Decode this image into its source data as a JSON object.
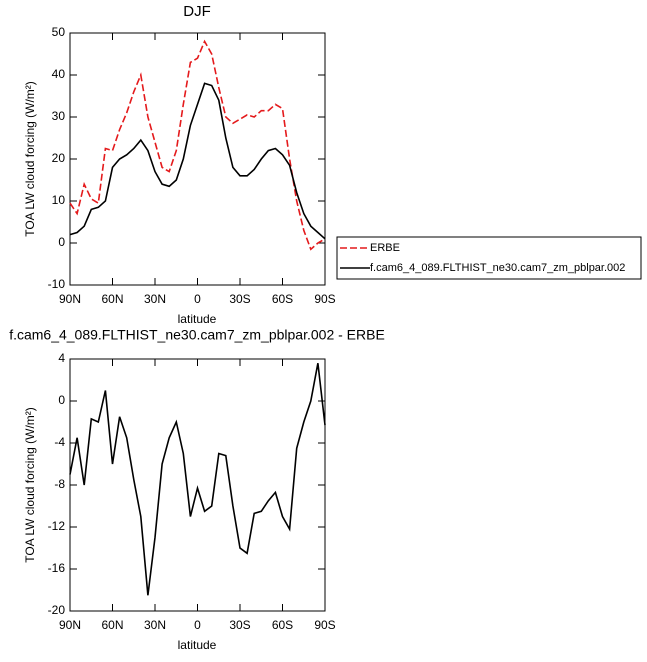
{
  "chart_data": [
    {
      "type": "line",
      "title": "DJF",
      "xlabel": "latitude",
      "ylabel": "TOA LW cloud forcing (W/m²)",
      "x": [
        90,
        85,
        80,
        75,
        70,
        65,
        60,
        55,
        50,
        45,
        40,
        35,
        30,
        25,
        20,
        15,
        10,
        5,
        0,
        -5,
        -10,
        -15,
        -20,
        -25,
        -30,
        -35,
        -40,
        -45,
        -50,
        -55,
        -60,
        -65,
        -70,
        -75,
        -80,
        -85,
        -90
      ],
      "xlim": [
        90,
        -90
      ],
      "xticks": [
        {
          "value": 90,
          "label": "90N"
        },
        {
          "value": 60,
          "label": "60N"
        },
        {
          "value": 30,
          "label": "30N"
        },
        0,
        {
          "value": -30,
          "label": "30S"
        },
        {
          "value": -60,
          "label": "60S"
        },
        {
          "value": -90,
          "label": "90S"
        }
      ],
      "ylim": [
        -10,
        50
      ],
      "yticks": [
        -10,
        0,
        10,
        20,
        30,
        40,
        50
      ],
      "series": [
        {
          "name": "ERBE",
          "color": "#e41a1c",
          "dashed": true,
          "values": [
            9.5,
            7,
            14,
            10.5,
            9.5,
            22.5,
            22,
            27,
            31,
            36,
            40,
            30,
            24,
            18,
            17,
            22,
            33,
            43,
            44,
            48,
            45,
            37,
            30,
            28.5,
            29.5,
            30.5,
            30,
            31.5,
            31.5,
            33,
            32,
            20,
            10,
            3,
            -1.5,
            0,
            1
          ]
        },
        {
          "name": "f.cam6_4_089.FLTHIST_ne30.cam7_zm_pblpar.002",
          "color": "#000000",
          "dashed": false,
          "values": [
            2,
            2.5,
            4,
            8,
            8.5,
            10,
            18,
            20,
            21,
            22.5,
            24.5,
            22,
            17,
            14,
            13.5,
            15,
            20,
            28,
            33,
            38,
            37.5,
            34,
            25,
            18,
            16,
            16,
            17.5,
            20,
            22,
            22.5,
            21,
            18.5,
            12,
            7,
            4,
            2.5,
            1
          ]
        }
      ]
    },
    {
      "type": "line",
      "title": "f.cam6_4_089.FLTHIST_ne30.cam7_zm_pblpar.002 - ERBE",
      "xlabel": "latitude",
      "ylabel": "TOA LW cloud forcing (W/m²)",
      "x": [
        90,
        85,
        80,
        75,
        70,
        65,
        60,
        55,
        50,
        45,
        40,
        35,
        30,
        25,
        20,
        15,
        10,
        5,
        0,
        -5,
        -10,
        -15,
        -20,
        -25,
        -30,
        -35,
        -40,
        -45,
        -50,
        -55,
        -60,
        -65,
        -70,
        -75,
        -80,
        -85,
        -90
      ],
      "xlim": [
        90,
        -90
      ],
      "xticks": [
        {
          "value": 90,
          "label": "90N"
        },
        {
          "value": 60,
          "label": "60N"
        },
        {
          "value": 30,
          "label": "30N"
        },
        0,
        {
          "value": -30,
          "label": "30S"
        },
        {
          "value": -60,
          "label": "60S"
        },
        {
          "value": -90,
          "label": "90S"
        }
      ],
      "ylim": [
        -20,
        4
      ],
      "yticks": [
        -20,
        -16,
        -12,
        -8,
        -4,
        0,
        4
      ],
      "series": [
        {
          "name": null,
          "color": "#000000",
          "dashed": false,
          "values": [
            -7,
            -3.5,
            -8,
            -1.7,
            -2,
            1,
            -6,
            -1.5,
            -3.5,
            -7.5,
            -11,
            -18.5,
            -13,
            -6,
            -3.5,
            -2,
            -5,
            -11,
            -8.3,
            -10.5,
            -10,
            -5,
            -5.2,
            -10,
            -14,
            -14.5,
            -10.7,
            -10.5,
            -9.5,
            -8.7,
            -11,
            -12.2,
            -4.5,
            -2,
            0,
            3.6,
            -2.3
          ]
        }
      ]
    }
  ]
}
